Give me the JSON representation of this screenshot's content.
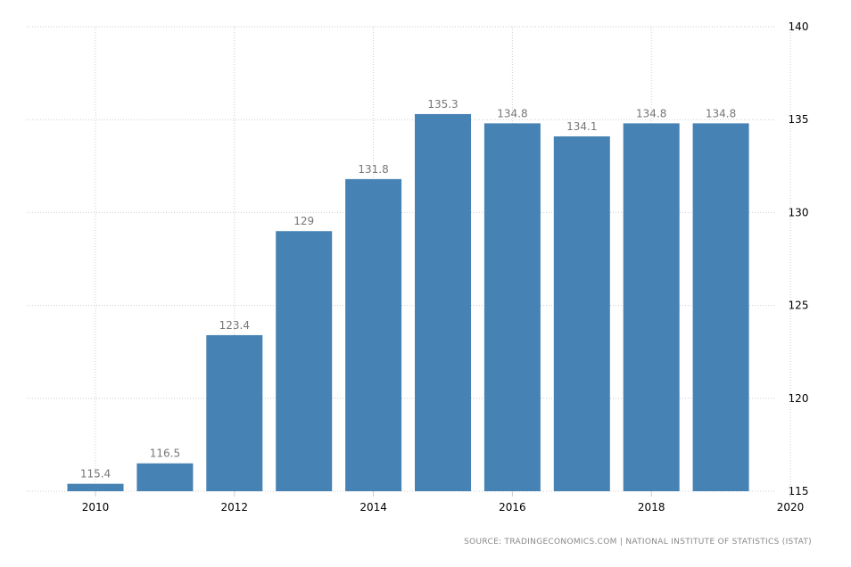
{
  "chart_data": {
    "type": "bar",
    "categories": [
      "2010",
      "2011",
      "2012",
      "2013",
      "2014",
      "2015",
      "2016",
      "2017",
      "2018",
      "2019"
    ],
    "values": [
      115.4,
      116.5,
      123.4,
      129,
      131.8,
      135.3,
      134.8,
      134.1,
      134.8,
      134.8
    ],
    "data_labels": [
      "115.4",
      "116.5",
      "123.4",
      "129",
      "131.8",
      "135.3",
      "134.8",
      "134.1",
      "134.8",
      "134.8"
    ],
    "ylim": [
      115,
      140
    ],
    "yticks": [
      115,
      120,
      125,
      130,
      135,
      140
    ],
    "xticks": [
      2010,
      2012,
      2014,
      2016,
      2018,
      2020
    ],
    "y_axis_position": "right",
    "grid": true,
    "bar_color": "#4682b4",
    "xlabel": "",
    "ylabel": "",
    "title": ""
  },
  "source": "SOURCE: TRADINGECONOMICS.COM | NATIONAL INSTITUTE OF STATISTICS (ISTAT)"
}
